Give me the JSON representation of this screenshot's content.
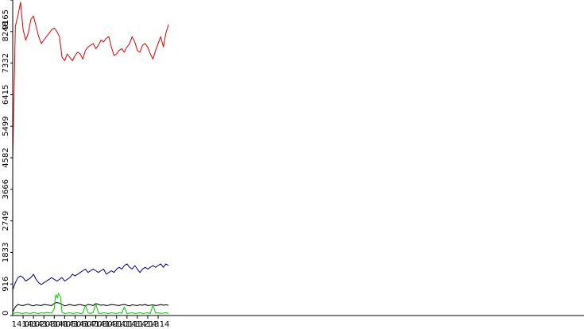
{
  "chart_data": {
    "type": "line",
    "title": "",
    "xlabel": "",
    "ylabel": "",
    "grid": false,
    "legend": "none",
    "ylim": [
      0,
      9165
    ],
    "xlim": [
      840,
      895
    ],
    "y_ticks": [
      0,
      916,
      1833,
      2749,
      3666,
      4582,
      5499,
      6415,
      7332,
      8248,
      9165
    ],
    "x_ticks": [
      {
        "x": 841,
        "label": "14:01"
      },
      {
        "x": 842,
        "label": "14:02"
      },
      {
        "x": 843,
        "label": "14:03"
      },
      {
        "x": 844,
        "label": "14:04"
      },
      {
        "x": 845,
        "label": "14:05"
      },
      {
        "x": 846,
        "label": "14:06"
      },
      {
        "x": 847,
        "label": "14:07"
      },
      {
        "x": 848,
        "label": "14:08"
      },
      {
        "x": 849,
        "label": "14:09"
      },
      {
        "x": 850,
        "label": "14:10"
      },
      {
        "x": 851,
        "label": "14:11"
      },
      {
        "x": 852,
        "label": "14:12"
      },
      {
        "x": 853,
        "label": "14:13"
      },
      {
        "x": 854,
        "label": "14:14"
      }
    ],
    "series": [
      {
        "color": "#e00000",
        "x": [
          840.0,
          840.25,
          840.5,
          840.75,
          841.0,
          841.25,
          841.5,
          841.75,
          842.0,
          842.25,
          842.5,
          842.75,
          843.0,
          843.25,
          843.5,
          843.75,
          844.0,
          844.25,
          844.5,
          844.75,
          845.0,
          845.25,
          845.5,
          845.75,
          846.0,
          846.25,
          846.5,
          846.75,
          847.0,
          847.25,
          847.5,
          847.75,
          848.0,
          848.25,
          848.5,
          848.75,
          849.0,
          849.25,
          849.5,
          849.75,
          850.0,
          850.25,
          850.5,
          850.75,
          851.0,
          851.25,
          851.5,
          851.75,
          852.0,
          852.25,
          852.5,
          852.75,
          853.0,
          853.25,
          853.5,
          853.75,
          854.0,
          854.25,
          854.5,
          854.75,
          855.0
        ],
        "values": [
          4500,
          8400,
          8700,
          9100,
          8300,
          8000,
          8200,
          8600,
          8700,
          8400,
          8100,
          7900,
          8000,
          8100,
          8200,
          8300,
          8350,
          8250,
          8100,
          7500,
          7400,
          7600,
          7500,
          7400,
          7550,
          7650,
          7600,
          7450,
          7700,
          7800,
          7850,
          7900,
          7750,
          7850,
          8000,
          7950,
          8050,
          8100,
          7800,
          7550,
          7600,
          7700,
          7750,
          7650,
          7800,
          7900,
          8100,
          7950,
          7700,
          7650,
          7850,
          7900,
          7800,
          7600,
          7450,
          7700,
          7900,
          8100,
          7800,
          8200,
          8450
        ]
      },
      {
        "color": "#00008b",
        "x": [
          840.0,
          840.25,
          840.5,
          840.75,
          841.0,
          841.25,
          841.5,
          841.75,
          842.0,
          842.25,
          842.5,
          842.75,
          843.0,
          843.25,
          843.5,
          843.75,
          844.0,
          844.25,
          844.5,
          844.75,
          845.0,
          845.25,
          845.5,
          845.75,
          846.0,
          846.25,
          846.5,
          846.75,
          847.0,
          847.25,
          847.5,
          847.75,
          848.0,
          848.25,
          848.5,
          848.75,
          849.0,
          849.25,
          849.5,
          849.75,
          850.0,
          850.25,
          850.5,
          850.75,
          851.0,
          851.25,
          851.5,
          851.75,
          852.0,
          852.25,
          852.5,
          852.75,
          853.0,
          853.25,
          853.5,
          853.75,
          854.0,
          854.25,
          854.5,
          854.75,
          855.0
        ],
        "values": [
          750,
          950,
          1100,
          1150,
          1100,
          1000,
          1050,
          1100,
          1200,
          1050,
          950,
          900,
          950,
          1000,
          1050,
          1100,
          1050,
          1000,
          1050,
          1100,
          1000,
          1050,
          1100,
          1200,
          1150,
          1200,
          1250,
          1300,
          1350,
          1250,
          1300,
          1350,
          1300,
          1250,
          1300,
          1350,
          1200,
          1250,
          1300,
          1250,
          1350,
          1400,
          1350,
          1450,
          1500,
          1400,
          1350,
          1450,
          1350,
          1250,
          1350,
          1400,
          1350,
          1400,
          1450,
          1400,
          1450,
          1500,
          1400,
          1500,
          1450
        ]
      },
      {
        "color": "#000000",
        "x": [
          840.0,
          840.25,
          840.5,
          840.75,
          841.0,
          841.25,
          841.5,
          841.75,
          842.0,
          842.25,
          842.5,
          842.75,
          843.0,
          843.25,
          843.5,
          843.75,
          844.0,
          844.25,
          844.5,
          844.75,
          845.0,
          845.25,
          845.5,
          845.75,
          846.0,
          846.25,
          846.5,
          846.75,
          847.0,
          847.25,
          847.5,
          847.75,
          848.0,
          848.25,
          848.5,
          848.75,
          849.0,
          849.25,
          849.5,
          849.75,
          850.0,
          850.25,
          850.5,
          850.75,
          851.0,
          851.25,
          851.5,
          851.75,
          852.0,
          852.25,
          852.5,
          852.75,
          853.0,
          853.25,
          853.5,
          853.75,
          854.0,
          854.25,
          854.5,
          854.75,
          855.0
        ],
        "values": [
          100,
          250,
          320,
          300,
          290,
          310,
          330,
          300,
          280,
          310,
          300,
          290,
          320,
          310,
          300,
          290,
          350,
          380,
          360,
          320,
          280,
          300,
          320,
          300,
          290,
          310,
          320,
          300,
          280,
          320,
          310,
          290,
          350,
          320,
          300,
          310,
          290,
          300,
          320,
          310,
          300,
          290,
          310,
          320,
          300,
          280,
          310,
          300,
          290,
          310,
          300,
          320,
          290,
          300,
          310,
          290,
          300,
          320,
          300,
          310,
          300
        ]
      },
      {
        "color": "#00cc00",
        "x": [
          840.0,
          840.25,
          840.5,
          840.75,
          841.0,
          841.25,
          841.5,
          841.75,
          842.0,
          842.25,
          842.5,
          842.75,
          843.0,
          843.25,
          843.5,
          843.75,
          844.0,
          844.1,
          844.2,
          844.3,
          844.4,
          844.5,
          844.6,
          844.75,
          845.0,
          845.25,
          845.5,
          845.75,
          846.0,
          846.25,
          846.5,
          846.75,
          847.0,
          847.25,
          847.5,
          847.75,
          848.0,
          848.25,
          848.5,
          848.75,
          849.0,
          849.25,
          849.5,
          849.75,
          850.0,
          850.25,
          850.5,
          850.75,
          851.0,
          851.25,
          851.5,
          851.75,
          852.0,
          852.25,
          852.5,
          852.75,
          853.0,
          853.25,
          853.5,
          853.75,
          854.0,
          854.25,
          854.5,
          854.75,
          855.0
        ],
        "values": [
          50,
          80,
          90,
          70,
          60,
          80,
          70,
          60,
          90,
          70,
          60,
          80,
          70,
          90,
          80,
          70,
          200,
          550,
          600,
          500,
          650,
          580,
          550,
          90,
          60,
          70,
          80,
          60,
          70,
          80,
          60,
          70,
          300,
          80,
          60,
          90,
          350,
          70,
          60,
          80,
          70,
          60,
          80,
          70,
          60,
          80,
          70,
          250,
          60,
          70,
          80,
          60,
          70,
          80,
          60,
          70,
          80,
          60,
          300,
          70,
          80,
          60,
          70,
          80,
          60
        ]
      }
    ]
  }
}
